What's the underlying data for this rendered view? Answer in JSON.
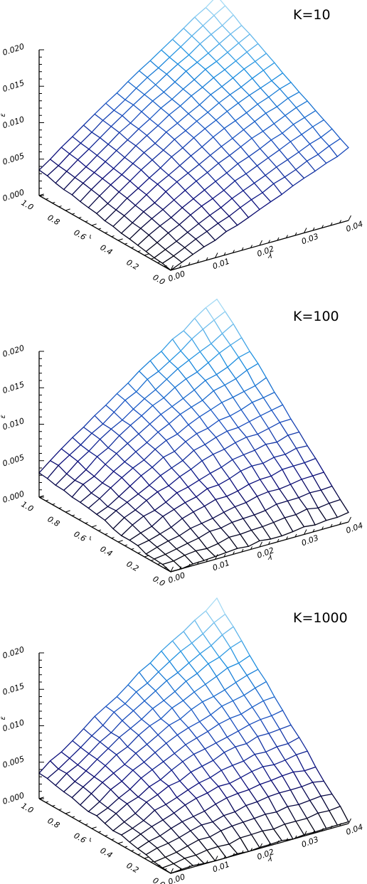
{
  "chart_data": [
    {
      "type": "surface",
      "title": "K=10",
      "xlabel": "λ",
      "ylabel": "ι",
      "zlabel": "ε",
      "xlim": [
        0.0,
        0.04
      ],
      "ylim": [
        0.0,
        1.0
      ],
      "zlim": [
        0.0,
        0.02
      ],
      "x_ticks": [
        "0.00",
        "0.01",
        "0.02",
        "0.03",
        "0.04"
      ],
      "y_ticks": [
        "0.0",
        "0.2",
        "0.4",
        "0.6",
        "0.8",
        "1.0"
      ],
      "z_ticks": [
        "0.000",
        "0.005",
        "0.010",
        "0.015",
        "0.020"
      ],
      "grid_size": [
        17,
        17
      ],
      "corner_values": {
        "x0_y0": 0.0,
        "x0_y1": 0.0035,
        "x1_y0": 0.0099,
        "x1_y1": 0.0205
      },
      "colormap": [
        "#000000",
        "#0a0a78",
        "#1a4fc0",
        "#1a8fe0",
        "#a8dcf5"
      ]
    },
    {
      "type": "surface",
      "title": "K=100",
      "xlabel": "λ",
      "ylabel": "ι",
      "zlabel": "ε",
      "xlim": [
        0.0,
        0.04
      ],
      "ylim": [
        0.0,
        1.0
      ],
      "zlim": [
        0.0,
        0.02
      ],
      "x_ticks": [
        "0.00",
        "0.01",
        "0.02",
        "0.03",
        "0.04"
      ],
      "y_ticks": [
        "0.0",
        "0.2",
        "0.4",
        "0.6",
        "0.8",
        "1.0"
      ],
      "z_ticks": [
        "0.000",
        "0.005",
        "0.010",
        "0.015",
        "0.020"
      ],
      "grid_size": [
        17,
        17
      ],
      "corner_values": {
        "x0_y0": 0.0,
        "x0_y1": 0.0035,
        "x1_y0": 0.0013,
        "x1_y1": 0.0205
      },
      "colormap": [
        "#000000",
        "#0a0a78",
        "#1a4fc0",
        "#1a8fe0",
        "#a8dcf5"
      ]
    },
    {
      "type": "surface",
      "title": "K=1000",
      "xlabel": "λ",
      "ylabel": "ι",
      "zlabel": "ε",
      "xlim": [
        0.0,
        0.04
      ],
      "ylim": [
        0.0,
        1.0
      ],
      "zlim": [
        0.0,
        0.02
      ],
      "x_ticks": [
        "0.00",
        "0.01",
        "0.02",
        "0.03",
        "0.04"
      ],
      "y_ticks": [
        "0.0",
        "0.2",
        "0.4",
        "0.6",
        "0.8",
        "1.0"
      ],
      "z_ticks": [
        "0.000",
        "0.005",
        "0.010",
        "0.015",
        "0.020"
      ],
      "grid_size": [
        17,
        17
      ],
      "corner_values": {
        "x0_y0": 0.0,
        "x0_y1": 0.0035,
        "x1_y0": 0.0003,
        "x1_y1": 0.0205
      },
      "colormap": [
        "#000000",
        "#0a0a78",
        "#1a4fc0",
        "#1a8fe0",
        "#a8dcf5"
      ]
    }
  ]
}
